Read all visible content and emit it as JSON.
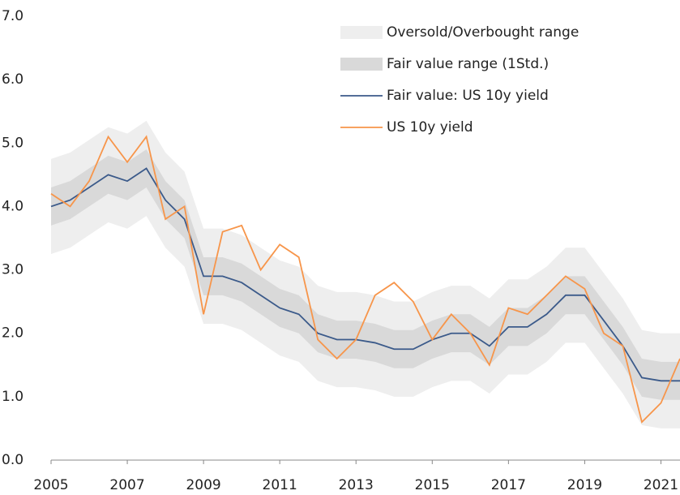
{
  "chart_data": {
    "type": "line",
    "x": [
      2005.0,
      2005.5,
      2006.0,
      2006.5,
      2007.0,
      2007.5,
      2008.0,
      2008.5,
      2009.0,
      2009.5,
      2010.0,
      2010.5,
      2011.0,
      2011.5,
      2012.0,
      2012.5,
      2013.0,
      2013.5,
      2014.0,
      2014.5,
      2015.0,
      2015.5,
      2016.0,
      2016.5,
      2017.0,
      2017.5,
      2018.0,
      2018.5,
      2019.0,
      2019.5,
      2020.0,
      2020.5,
      2021.0,
      2021.5
    ],
    "bands": [
      {
        "name": "Oversold/Overbought range",
        "color": "#eeeeee",
        "lower": [
          3.25,
          3.35,
          3.55,
          3.75,
          3.65,
          3.85,
          3.35,
          3.05,
          2.15,
          2.15,
          2.05,
          1.85,
          1.65,
          1.55,
          1.25,
          1.15,
          1.15,
          1.1,
          1.0,
          1.0,
          1.15,
          1.25,
          1.25,
          1.05,
          1.35,
          1.35,
          1.55,
          1.85,
          1.85,
          1.45,
          1.05,
          0.55,
          0.5,
          0.5
        ],
        "upper": [
          4.75,
          4.85,
          5.05,
          5.25,
          5.15,
          5.35,
          4.85,
          4.55,
          3.65,
          3.65,
          3.55,
          3.35,
          3.15,
          3.05,
          2.75,
          2.65,
          2.65,
          2.6,
          2.5,
          2.5,
          2.65,
          2.75,
          2.75,
          2.55,
          2.85,
          2.85,
          3.05,
          3.35,
          3.35,
          2.95,
          2.55,
          2.05,
          2.0,
          2.0
        ]
      },
      {
        "name": "Fair value range (1Std.)",
        "color": "#d9d9d9",
        "lower": [
          3.7,
          3.8,
          4.0,
          4.2,
          4.1,
          4.3,
          3.8,
          3.5,
          2.6,
          2.6,
          2.5,
          2.3,
          2.1,
          2.0,
          1.7,
          1.6,
          1.6,
          1.55,
          1.45,
          1.45,
          1.6,
          1.7,
          1.7,
          1.5,
          1.8,
          1.8,
          2.0,
          2.3,
          2.3,
          1.9,
          1.5,
          1.0,
          0.95,
          0.95
        ],
        "upper": [
          4.3,
          4.4,
          4.6,
          4.8,
          4.7,
          4.9,
          4.4,
          4.1,
          3.2,
          3.2,
          3.1,
          2.9,
          2.7,
          2.6,
          2.3,
          2.2,
          2.2,
          2.15,
          2.05,
          2.05,
          2.2,
          2.3,
          2.3,
          2.1,
          2.4,
          2.4,
          2.6,
          2.9,
          2.9,
          2.5,
          2.1,
          1.6,
          1.55,
          1.55
        ]
      }
    ],
    "series": [
      {
        "name": "Fair value: US 10y yield",
        "color": "#3b5a8a",
        "values": [
          4.0,
          4.1,
          4.3,
          4.5,
          4.4,
          4.6,
          4.1,
          3.8,
          2.9,
          2.9,
          2.8,
          2.6,
          2.4,
          2.3,
          2.0,
          1.9,
          1.9,
          1.85,
          1.75,
          1.75,
          1.9,
          2.0,
          2.0,
          1.8,
          2.1,
          2.1,
          2.3,
          2.6,
          2.6,
          2.2,
          1.8,
          1.3,
          1.25,
          1.25
        ]
      },
      {
        "name": "US 10y yield",
        "color": "#f7954a",
        "values": [
          4.2,
          4.0,
          4.4,
          5.1,
          4.7,
          5.1,
          3.8,
          4.0,
          2.3,
          3.6,
          3.7,
          3.0,
          3.4,
          3.2,
          1.9,
          1.6,
          1.9,
          2.6,
          2.8,
          2.5,
          1.9,
          2.3,
          2.0,
          1.5,
          2.4,
          2.3,
          2.6,
          2.9,
          2.7,
          2.0,
          1.8,
          0.6,
          0.9,
          1.6
        ]
      }
    ],
    "xlim": [
      2005,
      2021.5
    ],
    "xticks": [
      2005,
      2007,
      2009,
      2011,
      2013,
      2015,
      2017,
      2019,
      2021
    ],
    "ylim": [
      0,
      7
    ],
    "yticks": [
      {
        "value": 0,
        "label": "0.0"
      },
      {
        "value": 1,
        "label": "1.0"
      },
      {
        "value": 2,
        "label": "2.0"
      },
      {
        "value": 3,
        "label": "3.0"
      },
      {
        "value": 4,
        "label": "4.0"
      },
      {
        "value": 5,
        "label": "5.0"
      },
      {
        "value": 6,
        "label": "6.0"
      },
      {
        "value": 7,
        "label": "7.0"
      }
    ]
  }
}
